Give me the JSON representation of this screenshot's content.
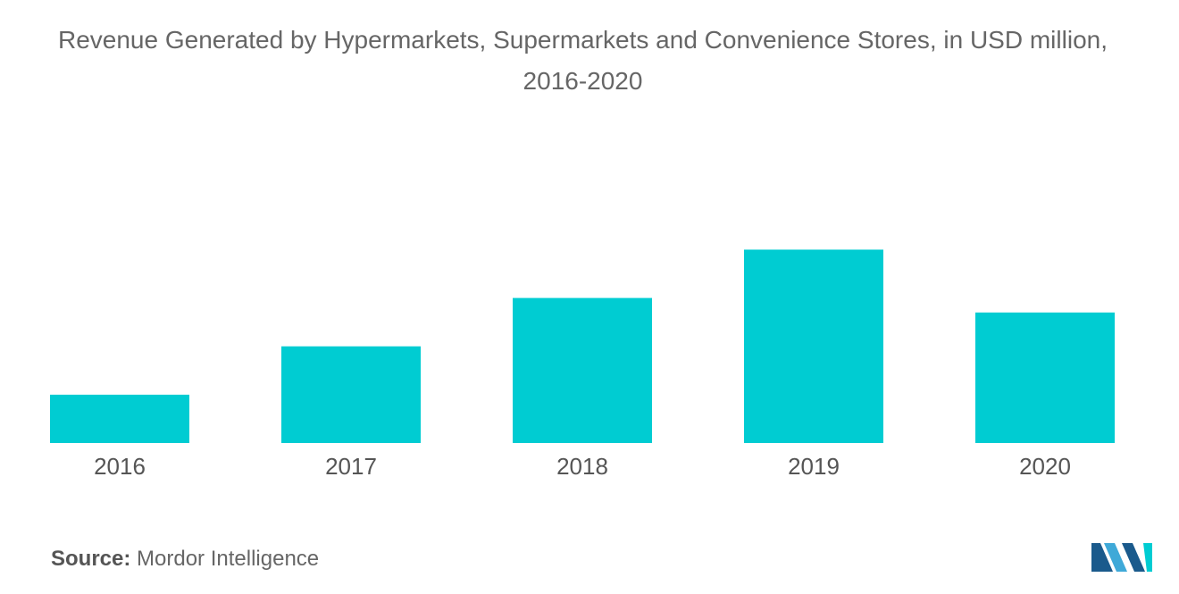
{
  "chart_data": {
    "type": "bar",
    "title": "Revenue Generated by Hypermarkets, Supermarkets and Convenience Stores, in USD million, 2016-2020",
    "xlabel": "",
    "ylabel": "",
    "categories": [
      "2016",
      "2017",
      "2018",
      "2019",
      "2020"
    ],
    "values": [
      1,
      2,
      3,
      4,
      2.7
    ],
    "ylim": [
      0,
      7.5
    ],
    "grid": false,
    "legend": "none",
    "bar_color": "#00ccd2"
  },
  "source": {
    "label": "Source:",
    "text": "Mordor Intelligence"
  },
  "logo": {
    "icon": "mordor-intelligence-logo",
    "colors": [
      "#1a5a8c",
      "#3fa9d8",
      "#00ccd2"
    ]
  }
}
